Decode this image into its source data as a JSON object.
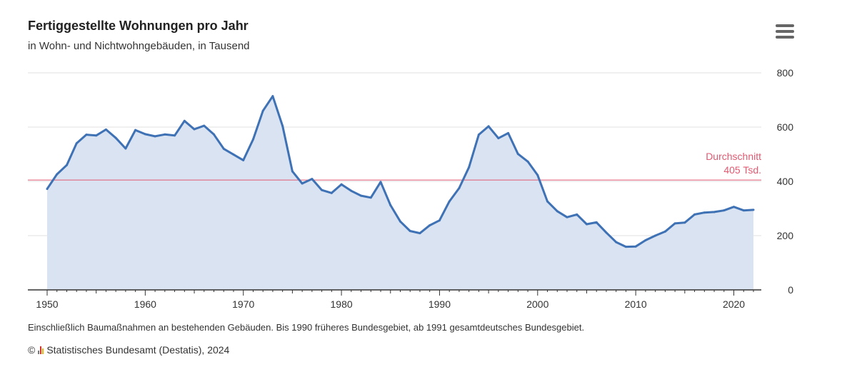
{
  "title": "Fertiggestellte Wohnungen pro Jahr",
  "subtitle": "in Wohn- und Nichtwohngebäuden, in Tausend",
  "menu_icon": "hamburger-menu-icon",
  "note": "Einschließlich Baumaßnahmen an bestehenden Gebäuden. Bis 1990 früheres Bundesgebiet, ab 1991 gesamtdeutsches Bundesgebiet.",
  "credit": {
    "copyright": "©",
    "logo_icon": "destatis-logo-icon",
    "text": "Statistisches Bundesamt (Destatis), 2024"
  },
  "colors": {
    "line": "#3f72b5",
    "area": "#dae3f1",
    "average": "#e05a72",
    "grid": "#e2e2e2",
    "axis": "#333333"
  },
  "chart_data": {
    "type": "area",
    "title": "Fertiggestellte Wohnungen pro Jahr",
    "subtitle": "in Wohn- und Nichtwohngebäuden, in Tausend",
    "xlim": [
      1950,
      2022
    ],
    "ylim": [
      0,
      800
    ],
    "x_ticks": [
      1950,
      1960,
      1970,
      1980,
      1990,
      2000,
      2010,
      2020
    ],
    "y_ticks": [
      0,
      200,
      400,
      600,
      800
    ],
    "y_axis_position": "right",
    "grid": true,
    "x": [
      1950,
      1951,
      1952,
      1953,
      1954,
      1955,
      1956,
      1957,
      1958,
      1959,
      1960,
      1961,
      1962,
      1963,
      1964,
      1965,
      1966,
      1967,
      1968,
      1969,
      1970,
      1971,
      1972,
      1973,
      1974,
      1975,
      1976,
      1977,
      1978,
      1979,
      1980,
      1981,
      1982,
      1983,
      1984,
      1985,
      1986,
      1987,
      1988,
      1989,
      1990,
      1991,
      1992,
      1993,
      1994,
      1995,
      1996,
      1997,
      1998,
      1999,
      2000,
      2001,
      2002,
      2003,
      2004,
      2005,
      2006,
      2007,
      2008,
      2009,
      2010,
      2011,
      2012,
      2013,
      2014,
      2015,
      2016,
      2017,
      2018,
      2019,
      2020,
      2021,
      2022
    ],
    "values": [
      372,
      426,
      460,
      540,
      572,
      569,
      591,
      560,
      521,
      589,
      574,
      566,
      573,
      569,
      623,
      592,
      605,
      573,
      520,
      499,
      478,
      555,
      660,
      714,
      604,
      437,
      392,
      409,
      368,
      357,
      389,
      365,
      347,
      340,
      398,
      312,
      252,
      217,
      209,
      238,
      256,
      326,
      375,
      452,
      572,
      603,
      559,
      578,
      501,
      473,
      423,
      326,
      290,
      268,
      278,
      242,
      249,
      211,
      176,
      159,
      160,
      183,
      200,
      215,
      245,
      248,
      278,
      285,
      287,
      293,
      306,
      293,
      295
    ],
    "average": {
      "value": 405,
      "label_line1": "Durchschnitt",
      "label_line2": "405 Tsd."
    }
  }
}
